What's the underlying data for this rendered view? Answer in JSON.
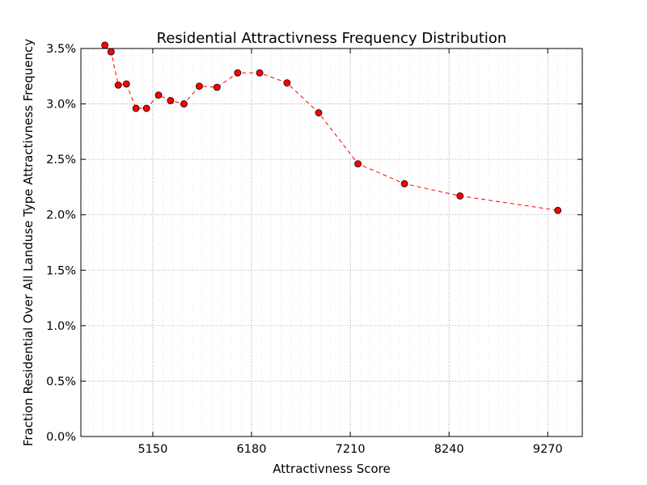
{
  "chart_data": {
    "type": "line",
    "title": "Residential Attractivness Frequency Distribution",
    "xlabel": "Attractivness Score",
    "ylabel": "Fraction Residential Over All Landuse Type Attractivness Frequency",
    "xlim": [
      4400,
      9630
    ],
    "ylim": [
      0.0,
      0.035
    ],
    "x_ticks": [
      5150,
      6180,
      7210,
      8240,
      9270
    ],
    "y_ticks": [
      0.0,
      0.005,
      0.01,
      0.015,
      0.02,
      0.025,
      0.03,
      0.035
    ],
    "y_tick_labels": [
      "0.0%",
      "0.5%",
      "1.0%",
      "1.5%",
      "2.0%",
      "2.5%",
      "3.0%",
      "3.5%"
    ],
    "grid": true,
    "series": [
      {
        "name": "",
        "color": "#ff0000",
        "line_style": "dashed",
        "marker": "circle",
        "x": [
          4650,
          4715,
          4790,
          4875,
          4975,
          5085,
          5210,
          5335,
          5475,
          5635,
          5820,
          6035,
          6265,
          6550,
          6880,
          7290,
          7775,
          8355,
          9375
        ],
        "y": [
          0.0353,
          0.0347,
          0.0317,
          0.0318,
          0.0296,
          0.0296,
          0.0308,
          0.0303,
          0.03,
          0.0316,
          0.0315,
          0.0328,
          0.0328,
          0.0319,
          0.0292,
          0.0246,
          0.0228,
          0.0217,
          0.0204
        ]
      }
    ]
  }
}
